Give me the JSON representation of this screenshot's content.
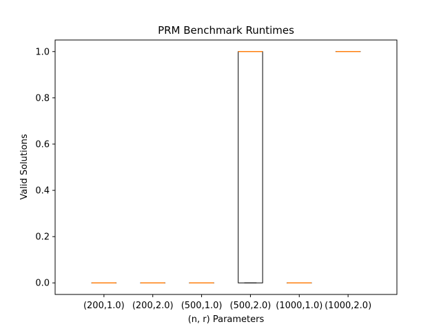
{
  "chart_data": {
    "type": "box",
    "title": "PRM Benchmark Runtimes",
    "xlabel": "(n, r) Parameters",
    "ylabel": "Valid Solutions",
    "categories": [
      "(200,1.0)",
      "(200,2.0)",
      "(500,1.0)",
      "(500,2.0)",
      "(1000,1.0)",
      "(1000,2.0)"
    ],
    "boxes": [
      {
        "category": "(200,1.0)",
        "min": 0,
        "q1": 0,
        "median": 0,
        "q3": 0,
        "max": 0
      },
      {
        "category": "(200,2.0)",
        "min": 0,
        "q1": 0,
        "median": 0,
        "q3": 0,
        "max": 0
      },
      {
        "category": "(500,1.0)",
        "min": 0,
        "q1": 0,
        "median": 0,
        "q3": 0,
        "max": 0
      },
      {
        "category": "(500,2.0)",
        "min": 0,
        "q1": 0,
        "median": 1,
        "q3": 1,
        "max": 1
      },
      {
        "category": "(1000,1.0)",
        "min": 0,
        "q1": 0,
        "median": 0,
        "q3": 0,
        "max": 0
      },
      {
        "category": "(1000,2.0)",
        "min": 1,
        "q1": 1,
        "median": 1,
        "q3": 1,
        "max": 1
      }
    ],
    "ylim": [
      -0.05,
      1.05
    ],
    "yticks": [
      "0.0",
      "0.2",
      "0.4",
      "0.6",
      "0.8",
      "1.0"
    ],
    "grid": false,
    "colors": {
      "box": "#000000",
      "median": "#ff7f0e"
    }
  }
}
